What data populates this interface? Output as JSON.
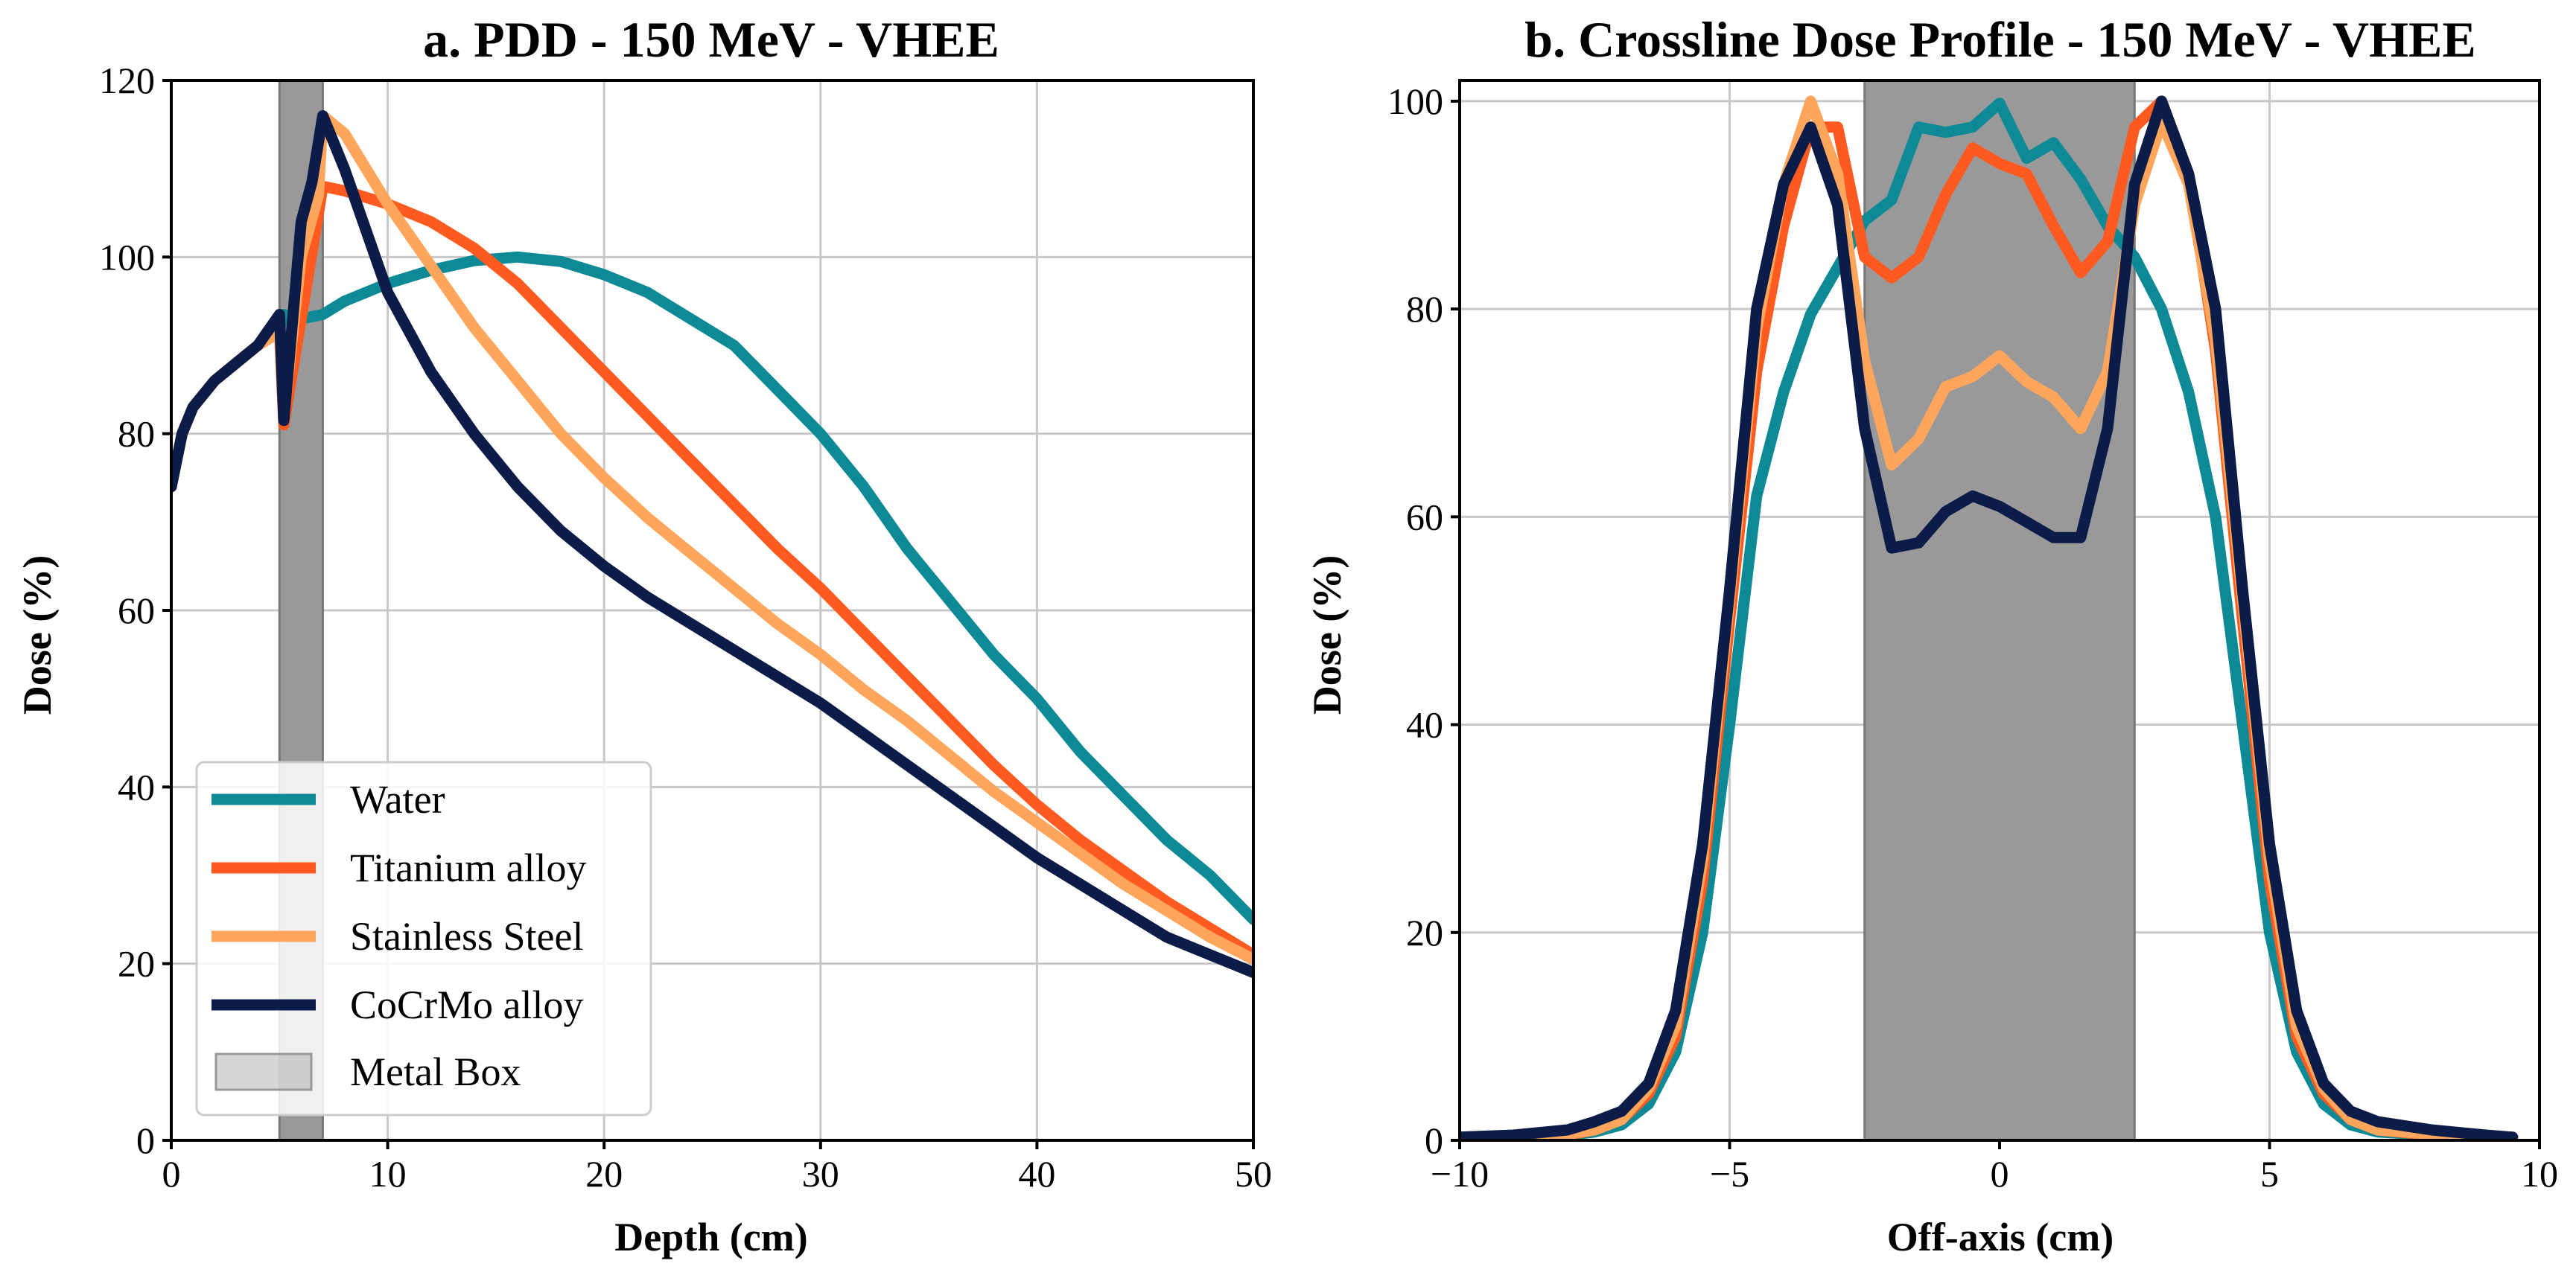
{
  "chart_data": [
    {
      "type": "line",
      "title": "a. PDD - 150 MeV - VHEE",
      "xlabel": "Depth (cm)",
      "ylabel": "Dose (%)",
      "xlim": [
        0,
        50
      ],
      "ylim": [
        0,
        120
      ],
      "xticks": [
        0,
        10,
        20,
        30,
        40,
        50
      ],
      "yticks": [
        0,
        20,
        40,
        60,
        80,
        100,
        120
      ],
      "grid": true,
      "legend_position": "lower-left",
      "shaded_regions": [
        {
          "name": "Metal Box",
          "x_start": 5,
          "x_end": 7,
          "color": "#999999"
        }
      ],
      "series": [
        {
          "name": "Water",
          "color": "#0E8A96",
          "x": [
            0,
            0.5,
            1,
            2,
            3,
            4,
            5,
            5.2,
            6,
            7,
            8,
            10,
            12,
            14,
            16,
            18,
            20,
            22,
            24,
            26,
            28,
            30,
            32,
            34,
            36,
            38,
            40,
            42,
            44,
            46,
            48,
            50
          ],
          "y": [
            74,
            80,
            83,
            86,
            88,
            90,
            92,
            93.5,
            93,
            93.5,
            95,
            97,
            98.5,
            99.6,
            100,
            99.5,
            98,
            96,
            93,
            90,
            85,
            80,
            74,
            67,
            61,
            55,
            50,
            44,
            39,
            34,
            30,
            25
          ]
        },
        {
          "name": "Titanium alloy",
          "color": "#FF5A1F",
          "x": [
            0,
            0.5,
            1,
            2,
            3,
            4,
            5,
            5.2,
            6,
            7,
            8,
            10,
            12,
            14,
            16,
            18,
            20,
            22,
            24,
            26,
            28,
            30,
            32,
            34,
            36,
            38,
            40,
            42,
            44,
            46,
            48,
            50
          ],
          "y": [
            74,
            80,
            83,
            86,
            88,
            90,
            91.5,
            81,
            93,
            108,
            107.5,
            106,
            104,
            101,
            97,
            92,
            87,
            82,
            77,
            72,
            67,
            62.5,
            57.5,
            52.5,
            47.5,
            42.5,
            38,
            34,
            30.5,
            27,
            24,
            21
          ]
        },
        {
          "name": "Stainless Steel",
          "color": "#FFA65C",
          "x": [
            0,
            0.5,
            1,
            2,
            3,
            4,
            5,
            5.2,
            6,
            6.8,
            7,
            8,
            10,
            12,
            14,
            16,
            18,
            20,
            22,
            24,
            26,
            28,
            30,
            32,
            34,
            36,
            38,
            40,
            42,
            44,
            46,
            48,
            50
          ],
          "y": [
            74,
            80,
            83,
            86,
            88,
            90,
            91.5,
            82,
            100,
            107,
            116,
            114,
            106,
            99,
            92,
            86,
            80,
            75,
            70.5,
            66.5,
            62.5,
            58.5,
            55,
            51,
            47.5,
            43.5,
            39.5,
            36,
            32.5,
            29,
            26,
            23,
            20.5
          ]
        },
        {
          "name": "CoCrMo alloy",
          "color": "#0B1C48",
          "x": [
            0,
            0.5,
            1,
            2,
            3,
            4,
            5,
            5.2,
            6,
            6.5,
            7,
            8,
            10,
            12,
            14,
            16,
            18,
            20,
            22,
            24,
            26,
            28,
            30,
            32,
            34,
            36,
            38,
            40,
            42,
            44,
            46,
            48,
            50
          ],
          "y": [
            74,
            80,
            83,
            86,
            88,
            90,
            93.5,
            81.5,
            104,
            108.5,
            116,
            110,
            96,
            87,
            80,
            74,
            69,
            65,
            61.5,
            58.5,
            55.5,
            52.5,
            49.5,
            46,
            42.5,
            39,
            35.5,
            32,
            29,
            26,
            23,
            21,
            19
          ]
        }
      ]
    },
    {
      "type": "line",
      "title": "b. Crossline Dose Profile - 150 MeV - VHEE",
      "xlabel": "Off-axis (cm)",
      "ylabel": "Dose (%)",
      "xlim": [
        -10,
        10
      ],
      "ylim": [
        0,
        102
      ],
      "xticks": [
        -10,
        -5,
        0,
        5,
        10
      ],
      "xtick_labels": [
        "−10",
        "−5",
        "0",
        "5",
        "10"
      ],
      "yticks": [
        0,
        20,
        40,
        60,
        80,
        100
      ],
      "grid": true,
      "shaded_regions": [
        {
          "name": "Metal Box",
          "x_start": -2.5,
          "x_end": 2.5,
          "color": "#999999"
        }
      ],
      "series": [
        {
          "name": "Water",
          "color": "#0E8A96",
          "x": [
            -10,
            -9,
            -8,
            -7.5,
            -7,
            -6.5,
            -6,
            -5.5,
            -5,
            -4.5,
            -4,
            -3.5,
            -3,
            -2.5,
            -2,
            -1.5,
            -1,
            -0.5,
            0,
            0.5,
            1,
            1.5,
            2,
            2.5,
            3,
            3.5,
            4,
            4.5,
            5,
            5.5,
            6,
            6.5,
            7,
            8,
            9,
            9.5
          ],
          "y": [
            0.3,
            0.3,
            0.5,
            0.8,
            1.5,
            3.5,
            8.5,
            20,
            40,
            62,
            72,
            79.5,
            84,
            88.5,
            90.5,
            97.5,
            97,
            97.5,
            99.8,
            94.5,
            96,
            92.5,
            88,
            85,
            80,
            72,
            60,
            40,
            20,
            8.5,
            3.5,
            1.5,
            0.8,
            0.5,
            0.3,
            0.3
          ]
        },
        {
          "name": "Titanium alloy",
          "color": "#FF5A1F",
          "x": [
            -10,
            -9,
            -8,
            -7.5,
            -7,
            -6.5,
            -6,
            -5.5,
            -5,
            -4.5,
            -4,
            -3.5,
            -3,
            -2.5,
            -2,
            -1.5,
            -1,
            -0.5,
            0,
            0.5,
            1,
            1.5,
            2,
            2.5,
            3,
            3.5,
            4,
            4.5,
            5,
            5.5,
            6,
            6.5,
            7,
            8,
            9,
            9.5
          ],
          "y": [
            0.3,
            0.3,
            0.5,
            1,
            2,
            4.5,
            10,
            25,
            50,
            74,
            88,
            97.5,
            97.5,
            85,
            83,
            85,
            91,
            95.5,
            94,
            93,
            88,
            83.5,
            86.5,
            97.5,
            100,
            93,
            76,
            50,
            25,
            10,
            4.5,
            2,
            1,
            0.5,
            0.3,
            0.3
          ]
        },
        {
          "name": "Stainless Steel",
          "color": "#FFA65C",
          "x": [
            -10,
            -9,
            -8,
            -7.5,
            -7,
            -6.5,
            -6,
            -5.5,
            -5,
            -4.5,
            -4,
            -3.5,
            -3,
            -2.5,
            -2,
            -1.5,
            -1,
            -0.5,
            0,
            0.5,
            1,
            1.5,
            2,
            2.5,
            3,
            3.5,
            4,
            4.5,
            5,
            5.5,
            6,
            6.5,
            7,
            8,
            9,
            9.5
          ],
          "y": [
            0.3,
            0.3,
            0.6,
            1,
            2,
            5,
            11,
            27,
            52,
            78,
            92,
            100,
            93,
            75,
            65,
            67.5,
            72.5,
            73.5,
            75.5,
            73,
            71.5,
            68.5,
            74,
            90,
            98,
            92,
            77,
            52,
            27,
            11,
            5,
            2,
            1,
            0.6,
            0.3,
            0.3
          ]
        },
        {
          "name": "CoCrMo alloy",
          "color": "#0B1C48",
          "x": [
            -10,
            -9,
            -8,
            -7.5,
            -7,
            -6.5,
            -6,
            -5.5,
            -5,
            -4.5,
            -4,
            -3.5,
            -3,
            -2.5,
            -2,
            -1.5,
            -1,
            -0.5,
            0,
            0.5,
            1,
            1.5,
            2,
            2.5,
            3,
            3.5,
            4,
            4.5,
            5,
            5.5,
            6,
            6.5,
            7,
            8,
            9,
            9.5
          ],
          "y": [
            0.3,
            0.5,
            1,
            1.8,
            2.8,
            5.5,
            12.5,
            28.5,
            53,
            80,
            92,
            97.5,
            90,
            68.5,
            57,
            57.5,
            60.5,
            62,
            61,
            59.5,
            58,
            58,
            68.5,
            92,
            100,
            93,
            80,
            53,
            28.5,
            12.5,
            5.5,
            2.8,
            1.8,
            1,
            0.5,
            0.3
          ]
        }
      ]
    }
  ],
  "legend": {
    "items": [
      {
        "label": "Water",
        "color": "#0E8A96",
        "kind": "line"
      },
      {
        "label": "Titanium alloy",
        "color": "#FF5A1F",
        "kind": "line"
      },
      {
        "label": "Stainless Steel",
        "color": "#FFA65C",
        "kind": "line"
      },
      {
        "label": "CoCrMo alloy",
        "color": "#0B1C48",
        "kind": "line"
      },
      {
        "label": "Metal Box",
        "color": "#999999",
        "kind": "patch"
      }
    ]
  }
}
